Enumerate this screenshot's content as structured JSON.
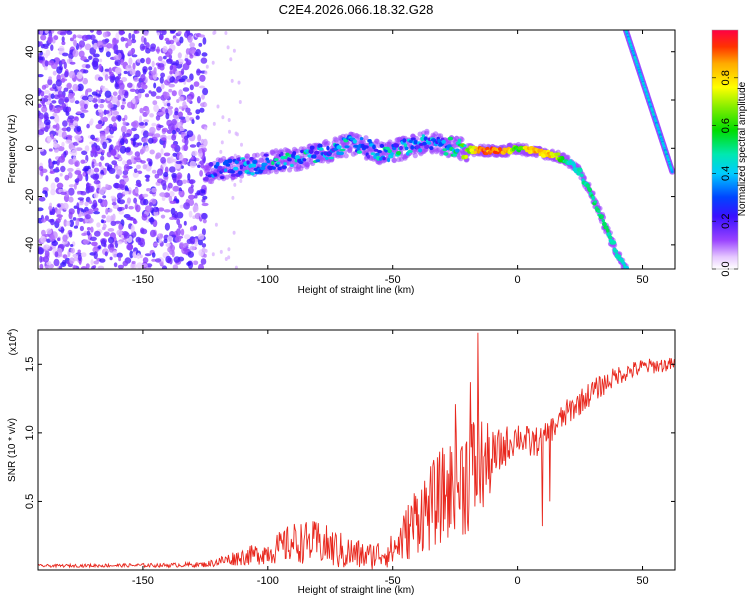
{
  "title": "C2E4.2026.066.18.32.G28",
  "chart_data": [
    {
      "type": "heatmap",
      "name": "spectrogram",
      "xlabel": "Height of straight line (km)",
      "ylabel": "Frequency (Hz)",
      "xlim": [
        -192,
        63
      ],
      "ylim": [
        -50,
        49
      ],
      "x_ticks": [
        -150,
        -100,
        -50,
        0,
        50
      ],
      "y_ticks": [
        -40,
        -20,
        0,
        20,
        40
      ],
      "colorbar": {
        "label": "Normalized spectral amplitude",
        "range": [
          0,
          1
        ],
        "ticks": [
          0.0,
          0.2,
          0.4,
          0.6,
          0.8
        ]
      },
      "ridge": {
        "description": "main frequency track",
        "x": [
          -125,
          -115,
          -105,
          -95,
          -85,
          -75,
          -65,
          -55,
          -45,
          -35,
          -25,
          -15,
          -5,
          0,
          5,
          10,
          15,
          20,
          25,
          30,
          35,
          40,
          44
        ],
        "y": [
          -10,
          -8,
          -7,
          -5,
          -4,
          -1,
          2,
          -2,
          0,
          3,
          0,
          -1,
          -1,
          0,
          -1,
          -2,
          -3,
          -5,
          -10,
          -20,
          -32,
          -44,
          -50
        ],
        "amplitude": [
          0.3,
          0.35,
          0.4,
          0.45,
          0.45,
          0.45,
          0.4,
          0.45,
          0.45,
          0.4,
          0.45,
          0.95,
          0.95,
          0.6,
          0.9,
          0.9,
          0.85,
          0.5,
          0.5,
          0.55,
          0.55,
          0.5,
          0.45
        ]
      },
      "secondary_track": {
        "description": "aliased steep track",
        "x": [
          43,
          62
        ],
        "y": [
          50,
          -10
        ],
        "amplitude": 0.4
      },
      "noise_region": {
        "x_range": [
          -192,
          -125
        ],
        "amplitude": 0.12
      }
    },
    {
      "type": "line",
      "name": "snr",
      "xlabel": "Height of straight line (km)",
      "ylabel": "SNR (10 * v/v)",
      "y_multiplier": "(x10",
      "y_multiplier_exp": "4",
      "y_multiplier_close": ")",
      "xlim": [
        -192,
        63
      ],
      "ylim": [
        0,
        17500
      ],
      "x_ticks": [
        -150,
        -100,
        -50,
        0,
        50
      ],
      "y_ticks": [
        5000,
        10000,
        15000
      ],
      "y_tick_labels": [
        "0.5",
        "1.0",
        "1.5"
      ],
      "color": "#e8281e",
      "envelope": {
        "x": [
          -192,
          -140,
          -125,
          -115,
          -100,
          -90,
          -80,
          -70,
          -60,
          -50,
          -45,
          -40,
          -35,
          -30,
          -25,
          -20,
          -15,
          -10,
          -5,
          0,
          5,
          10,
          20,
          30,
          40,
          50,
          62
        ],
        "mean": [
          300,
          350,
          400,
          800,
          1300,
          2000,
          2000,
          1300,
          1000,
          1400,
          2500,
          4000,
          4500,
          5500,
          6000,
          7000,
          7500,
          8000,
          9000,
          9800,
          9200,
          9500,
          11500,
          13000,
          14200,
          14800,
          15000
        ],
        "amp": [
          100,
          150,
          200,
          500,
          900,
          1500,
          1600,
          1400,
          1000,
          1200,
          2000,
          2800,
          3200,
          3500,
          4000,
          4500,
          4000,
          2200,
          1500,
          1200,
          1200,
          1000,
          1000,
          900,
          700,
          600,
          500
        ]
      },
      "spikes": [
        {
          "x": -16,
          "y": 17300
        },
        {
          "x": -19,
          "y": 13700
        },
        {
          "x": -25,
          "y": 12100
        },
        {
          "x": 10,
          "y": 3200
        },
        {
          "x": 13,
          "y": 5000
        }
      ]
    }
  ]
}
